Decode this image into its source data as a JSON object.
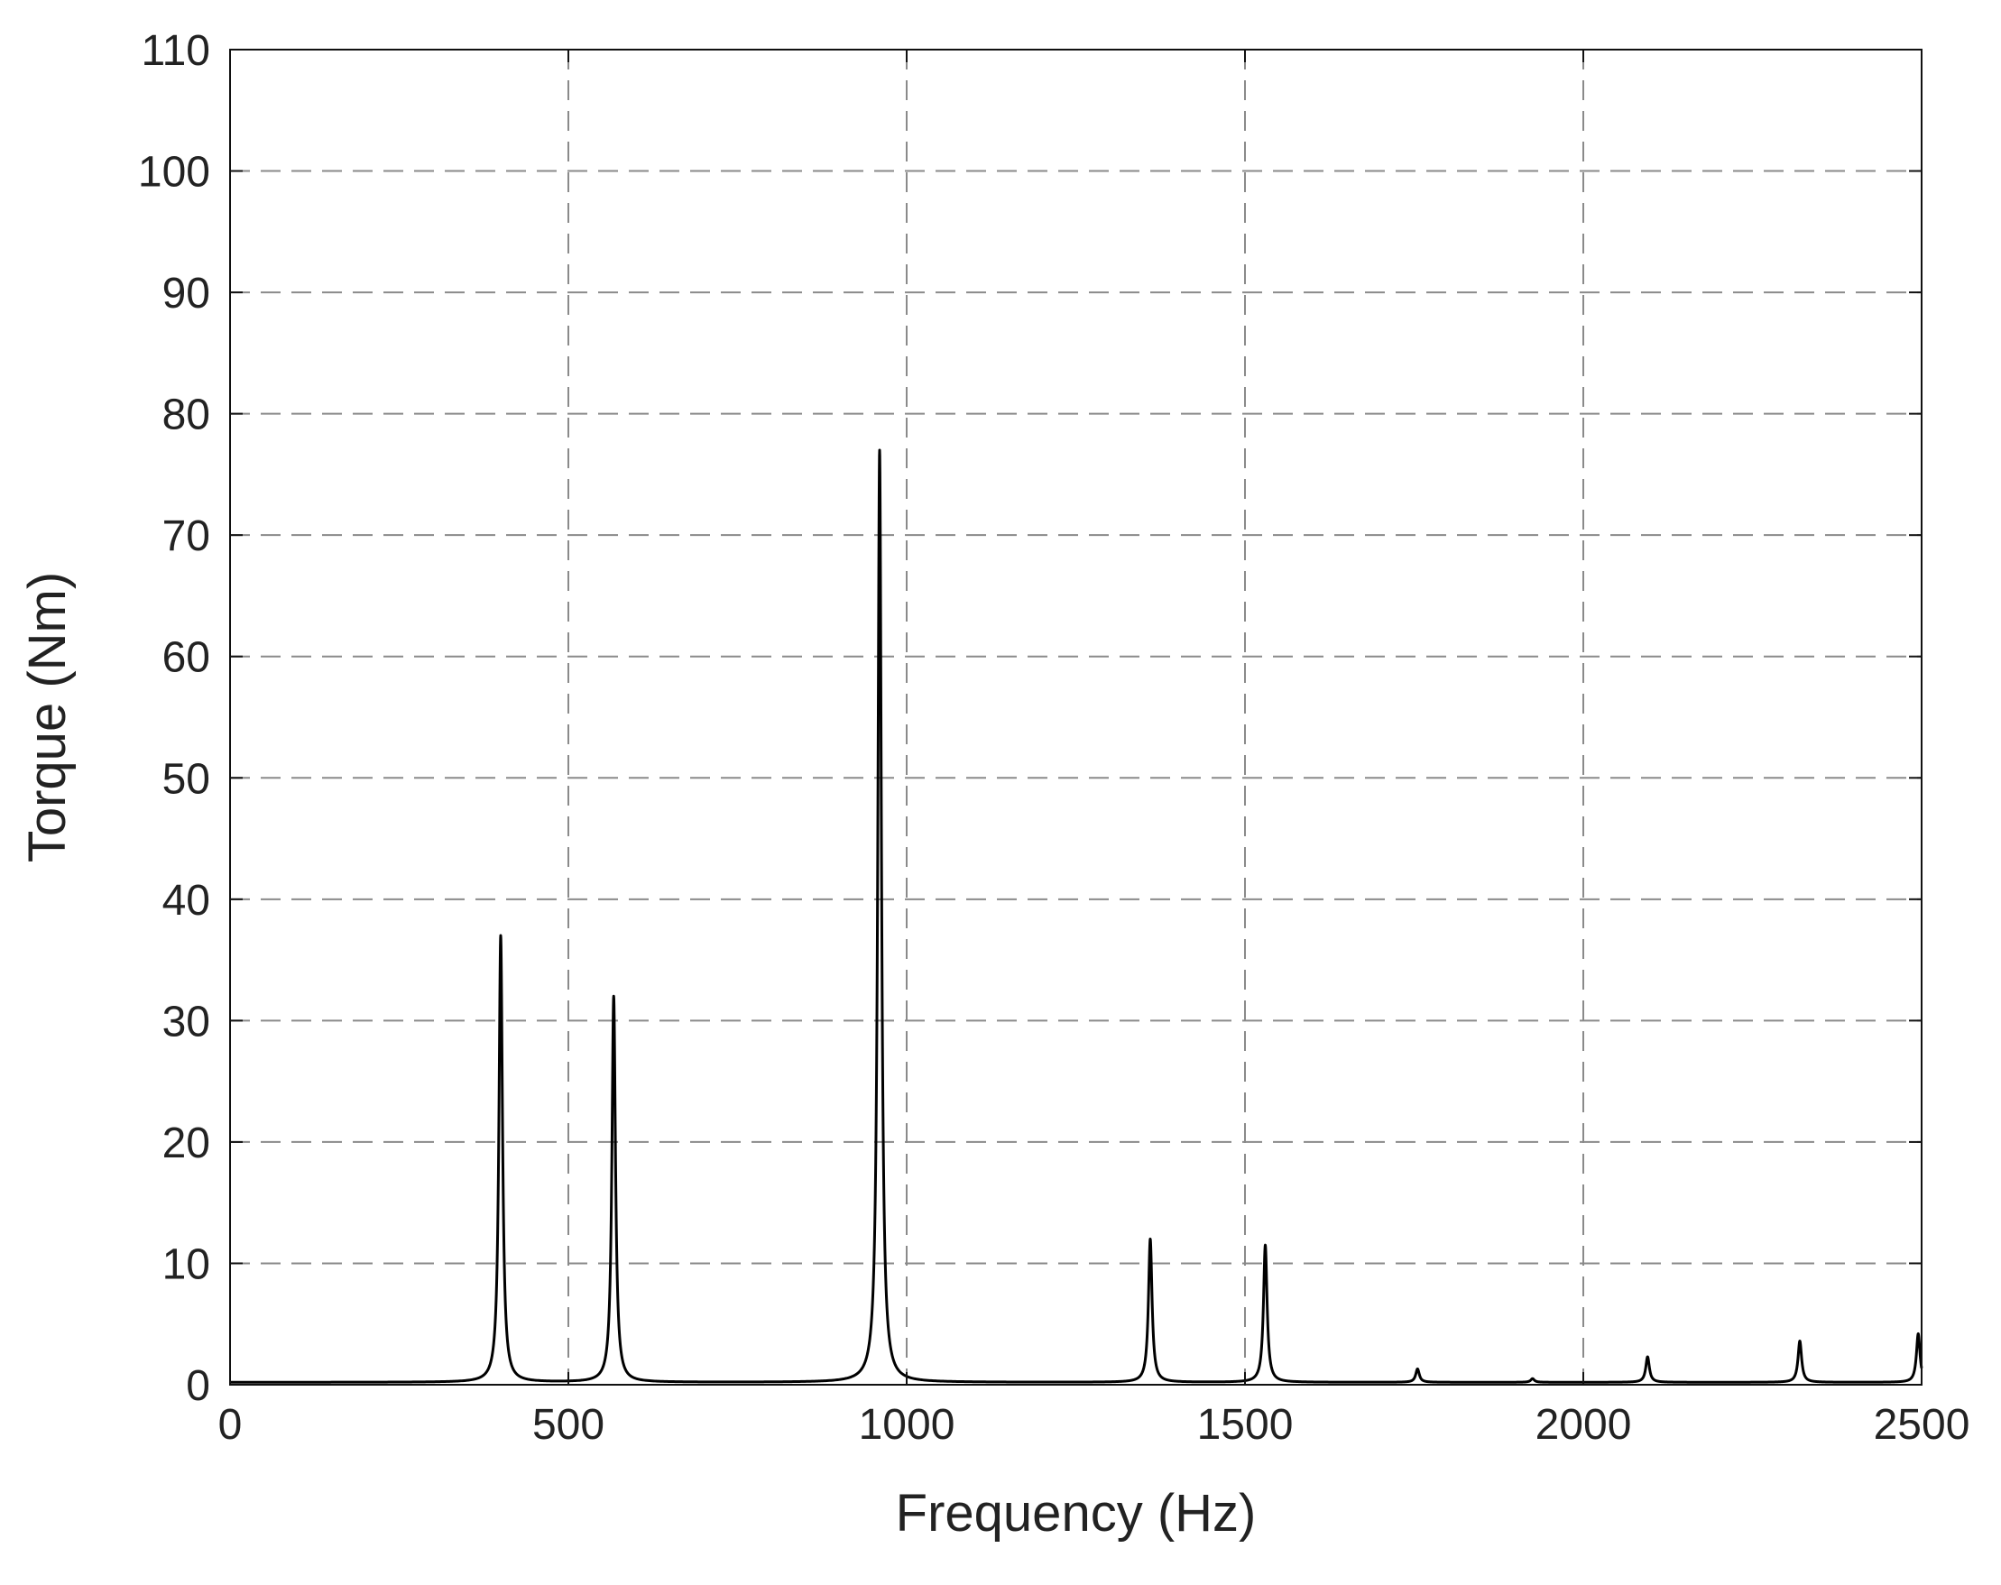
{
  "chart_data": {
    "type": "line",
    "title": "",
    "xlabel": "Frequency (Hz)",
    "ylabel": "Torque (Nm)",
    "xlim": [
      0,
      2500
    ],
    "ylim": [
      0,
      110
    ],
    "xticks": [
      0,
      500,
      1000,
      1500,
      2000,
      2500
    ],
    "yticks": [
      0,
      10,
      20,
      30,
      40,
      50,
      60,
      70,
      80,
      90,
      100,
      110
    ],
    "grid": true,
    "grid_style": "dashed",
    "line_color": "#000000",
    "series": [
      {
        "peaks": [
          {
            "x": 400,
            "y": 37
          },
          {
            "x": 567,
            "y": 32
          },
          {
            "x": 960,
            "y": 77
          },
          {
            "x": 1360,
            "y": 12
          },
          {
            "x": 1530,
            "y": 11.5
          },
          {
            "x": 1755,
            "y": 1.3
          },
          {
            "x": 1925,
            "y": 0.5
          },
          {
            "x": 2095,
            "y": 2.3
          },
          {
            "x": 2320,
            "y": 3.6
          },
          {
            "x": 2495,
            "y": 4.2
          }
        ],
        "baseline": 0.2
      }
    ]
  }
}
